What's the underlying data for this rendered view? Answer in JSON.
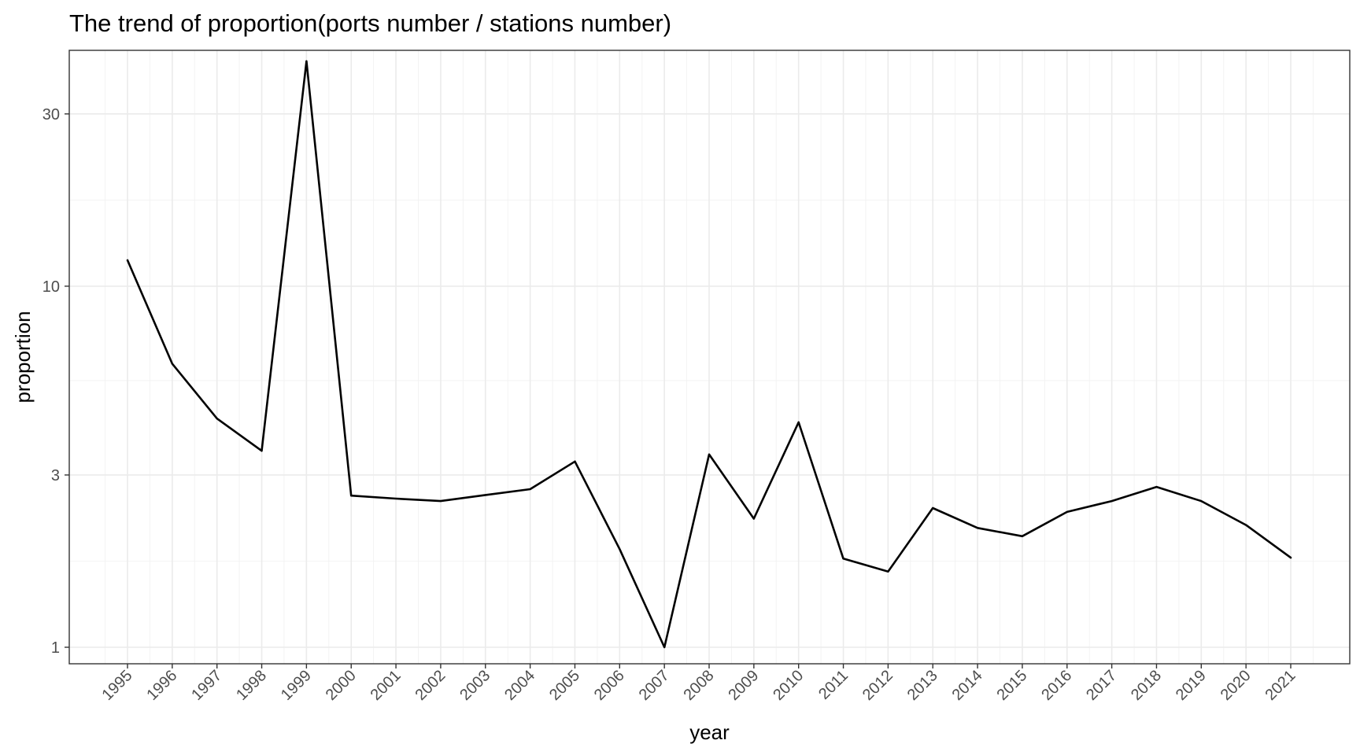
{
  "chart_data": {
    "type": "line",
    "title": "The trend of proportion(ports number / stations number)",
    "xlabel": "year",
    "ylabel": "proportion",
    "y_scale": "log10",
    "ylim": [
      0.9,
      45
    ],
    "y_ticks": [
      1,
      3,
      10,
      30
    ],
    "y_tick_labels": [
      "1",
      "3",
      "10",
      "30"
    ],
    "x_tick_rotation_deg": 45,
    "grid": true,
    "legend": "none",
    "line_color": "#000000",
    "x": [
      "1995",
      "1996",
      "1997",
      "1998",
      "1999",
      "2000",
      "2001",
      "2002",
      "2003",
      "2004",
      "2005",
      "2006",
      "2007",
      "2008",
      "2009",
      "2010",
      "2011",
      "2012",
      "2013",
      "2014",
      "2015",
      "2016",
      "2017",
      "2018",
      "2019",
      "2020",
      "2021"
    ],
    "series": [
      {
        "name": "proportion",
        "values": [
          11.8,
          6.1,
          4.3,
          3.5,
          42.0,
          2.63,
          2.58,
          2.54,
          2.64,
          2.74,
          3.27,
          1.87,
          1.0,
          3.42,
          2.27,
          4.2,
          1.76,
          1.62,
          2.43,
          2.14,
          2.03,
          2.37,
          2.54,
          2.78,
          2.54,
          2.18,
          1.77
        ]
      }
    ]
  }
}
